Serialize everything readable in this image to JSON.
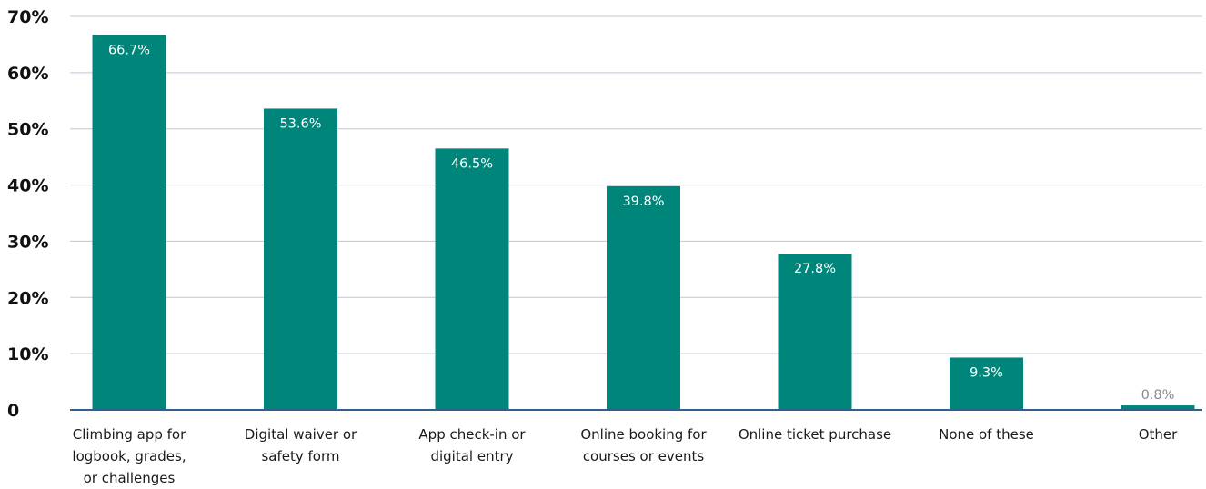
{
  "chart_data": {
    "type": "bar",
    "title": "",
    "xlabel": "",
    "ylabel": "",
    "ylim": [
      0,
      70
    ],
    "y_ticks": [
      0,
      10,
      20,
      30,
      40,
      50,
      60,
      70
    ],
    "y_tick_labels": [
      "0",
      "10%",
      "20%",
      "30%",
      "40%",
      "50%",
      "60%",
      "70%"
    ],
    "grid": true,
    "legend": "none",
    "categories": [
      [
        "Climbing app for",
        "logbook, grades,",
        "or challenges"
      ],
      [
        "Digital waiver or",
        "safety form"
      ],
      [
        "App check-in or",
        "digital entry"
      ],
      [
        "Online booking for",
        "courses or events"
      ],
      [
        "Online ticket purchase"
      ],
      [
        "None of these"
      ],
      [
        "Other"
      ]
    ],
    "values": [
      66.7,
      53.6,
      46.5,
      39.8,
      27.8,
      9.3,
      0.8
    ],
    "data_labels": [
      "66.7%",
      "53.6%",
      "46.5%",
      "39.8%",
      "27.8%",
      "9.3%",
      "0.8%"
    ]
  },
  "colors": {
    "bar": "#00857a",
    "gridline": "#b9c9d6",
    "baseline": "#2f5f8a",
    "label_inside": "#ffffff",
    "label_outside": "#8a8a8a"
  }
}
